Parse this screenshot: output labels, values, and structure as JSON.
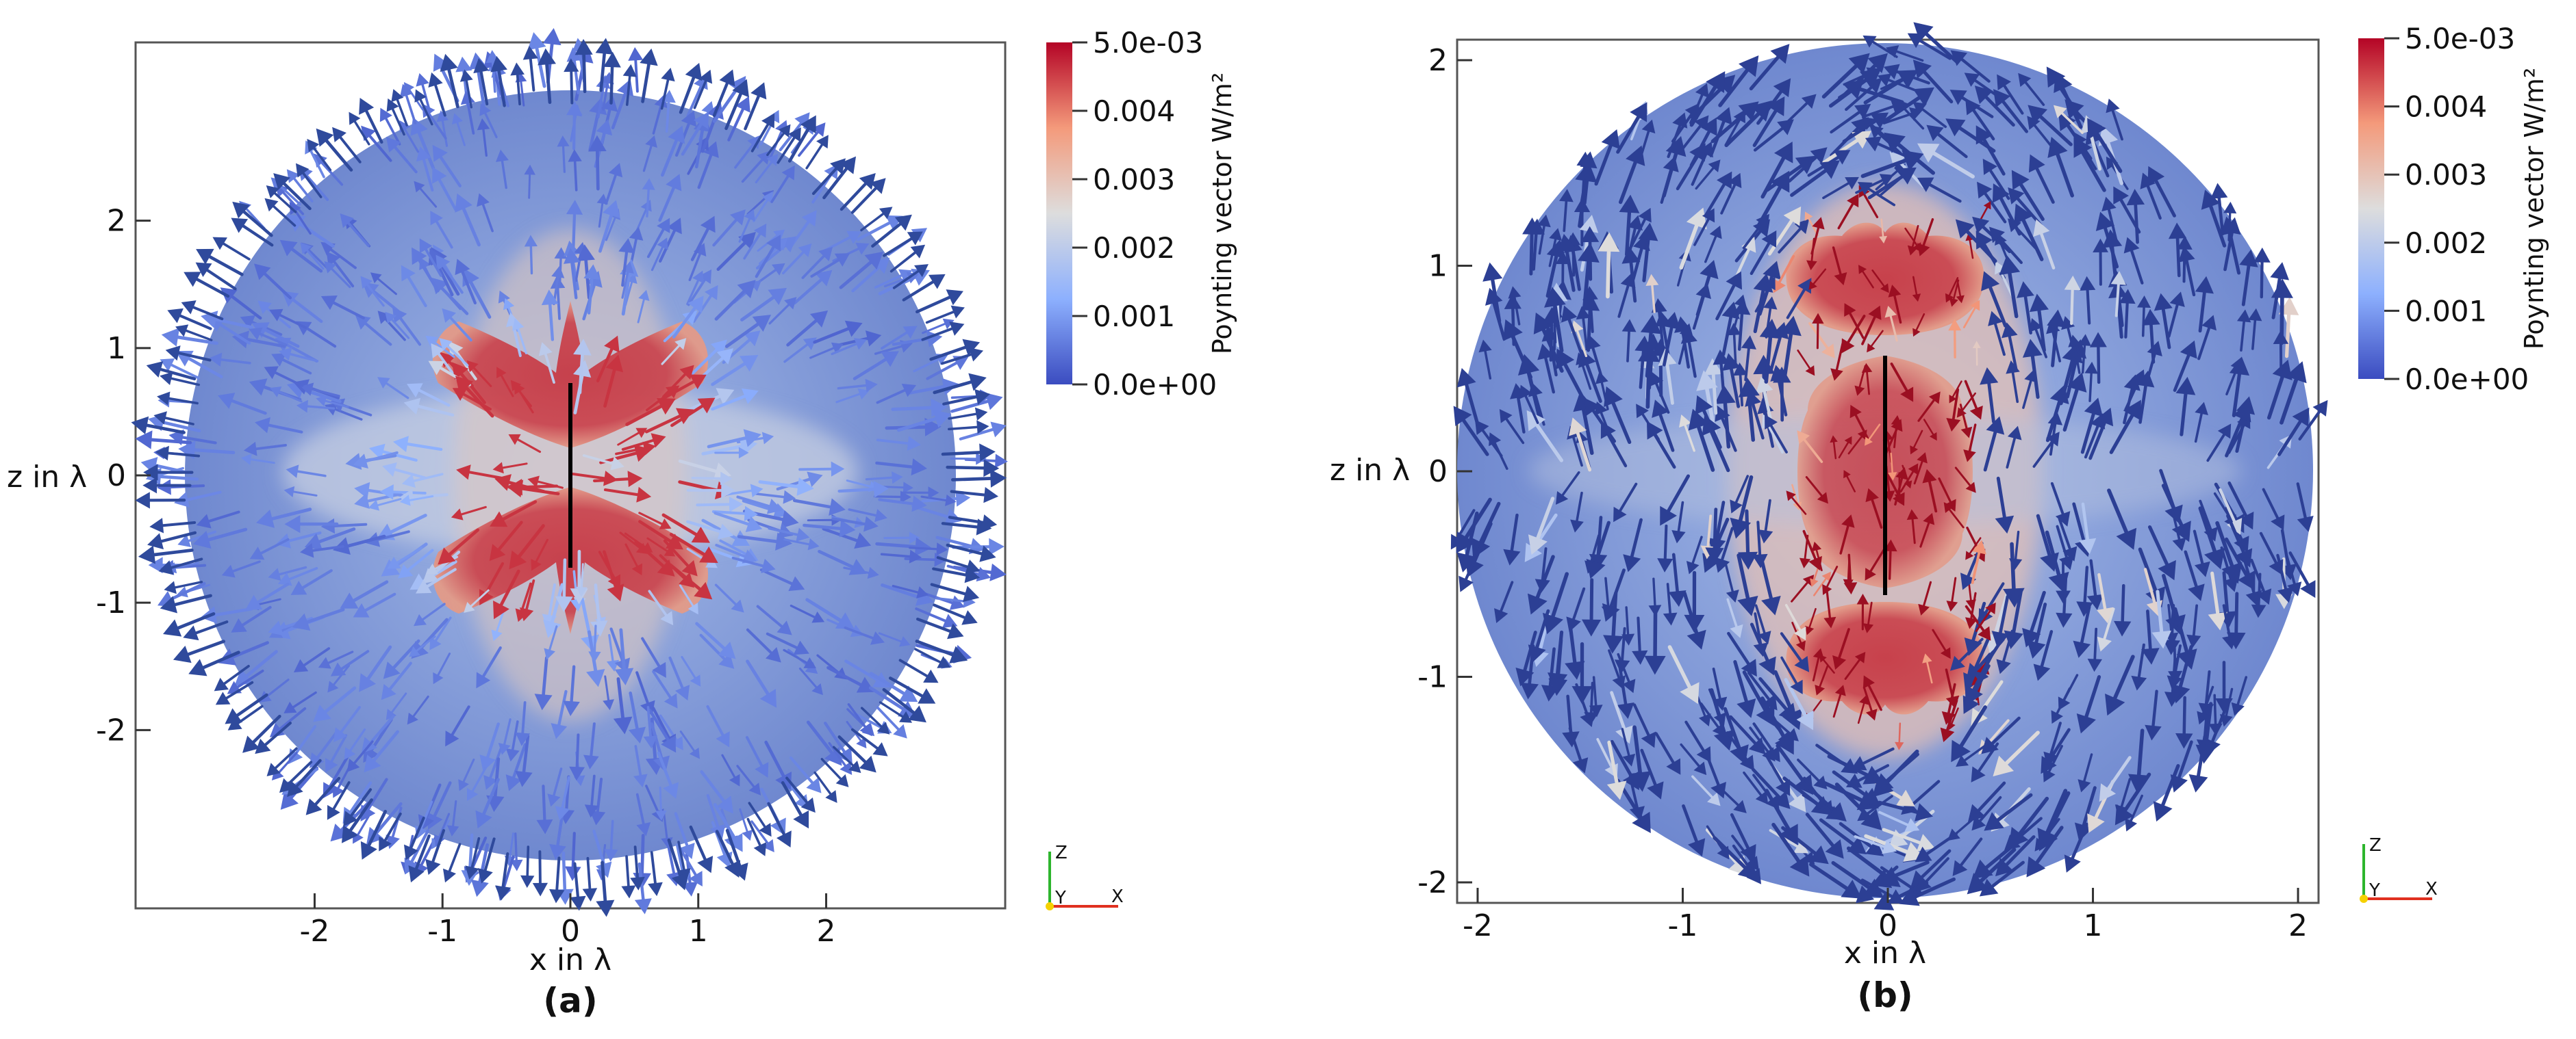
{
  "figure": {
    "background": "#ffffff"
  },
  "colorbar": {
    "min": 0.0,
    "max": 0.005,
    "max_label": "5.0e-03",
    "min_label": "0.0e+00",
    "tick_values": [
      0.004,
      0.003,
      0.002,
      0.001
    ],
    "tick_labels": [
      "0.004",
      "0.003",
      "0.002",
      "0.001"
    ],
    "title": "Poynting vector W/m²",
    "colors": [
      "#3b4cc0",
      "#8db0fe",
      "#dddddd",
      "#f49a7b",
      "#b40426"
    ]
  },
  "triad": {
    "z": "Z",
    "y": "Y",
    "x": "X"
  },
  "chart_data": [
    {
      "type": "vector-field",
      "caption": "(a)",
      "xlabel": "x in λ",
      "ylabel": "z in λ",
      "xlim": [
        -3.4,
        3.4
      ],
      "ylim": [
        -3.4,
        3.4
      ],
      "xticks": [
        -2,
        -1,
        0,
        1,
        2
      ],
      "xtick_labels": [
        "-2",
        "-1",
        "0",
        "1",
        "2"
      ],
      "yticks": [
        2,
        1,
        0,
        -1,
        -2
      ],
      "ytick_labels": [
        "2",
        "1",
        "0",
        "-1",
        "-2"
      ],
      "domain_radius": 3.0,
      "antenna_z": [
        -0.7,
        0.7
      ],
      "color_range": [
        0.0,
        0.005
      ],
      "hotspot_lobes": [
        {
          "cx": 0,
          "cz": 0.55,
          "shape": "butterfly-upper"
        },
        {
          "cx": 0,
          "cz": -0.55,
          "shape": "butterfly-lower"
        }
      ],
      "field": "radial-outward"
    },
    {
      "type": "vector-field",
      "caption": "(b)",
      "xlabel": "x in λ",
      "ylabel": "z in λ",
      "xlim": [
        -2.1,
        2.1
      ],
      "ylim": [
        -2.1,
        2.1
      ],
      "xticks": [
        -2,
        -1,
        0,
        1,
        2
      ],
      "xtick_labels": [
        "-2",
        "-1",
        "0",
        "1",
        "2"
      ],
      "yticks": [
        2,
        1,
        0,
        -1,
        -2
      ],
      "ytick_labels": [
        "2",
        "1",
        "0",
        "-1",
        "-2"
      ],
      "domain_radius": 2.1,
      "antenna_z": [
        -0.6,
        0.6
      ],
      "color_range": [
        0.0,
        0.005
      ],
      "hotspot_lobes": [
        {
          "cx": 0,
          "cz": 0.85,
          "shape": "upper-blob"
        },
        {
          "cx": 0,
          "cz": -0.85,
          "shape": "lower-blob"
        },
        {
          "cx": 0,
          "cz": 0.0,
          "shape": "middle-band"
        }
      ],
      "field": "lobed-circulating"
    }
  ]
}
